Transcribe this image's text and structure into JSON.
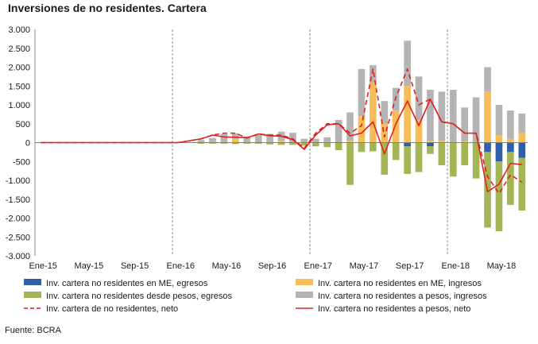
{
  "title": "Inversiones de no residentes. Cartera",
  "source": "Fuente: BCRA",
  "chart_data": {
    "type": "bar",
    "title": "Inversiones de no residentes. Cartera",
    "ylim": [
      -3000,
      3000
    ],
    "yticks": [
      -3000,
      -2500,
      -2000,
      -1500,
      -1000,
      -500,
      0,
      500,
      1000,
      1500,
      2000,
      2500,
      3000
    ],
    "ytick_labels": [
      "-3.000",
      "-2.500",
      "-2.000",
      "-1.500",
      "-1.000",
      "-500",
      "0",
      "500",
      "1.000",
      "1.500",
      "2.000",
      "2.500",
      "3.000"
    ],
    "categories": [
      "Ene-15",
      "Feb-15",
      "Mar-15",
      "Abr-15",
      "May-15",
      "Jun-15",
      "Jul-15",
      "Ago-15",
      "Sep-15",
      "Oct-15",
      "Nov-15",
      "Dic-15",
      "Ene-16",
      "Feb-16",
      "Mar-16",
      "Abr-16",
      "May-16",
      "Jun-16",
      "Jul-16",
      "Ago-16",
      "Sep-16",
      "Oct-16",
      "Nov-16",
      "Dic-16",
      "Ene-17",
      "Feb-17",
      "Mar-17",
      "Abr-17",
      "May-17",
      "Jun-17",
      "Jul-17",
      "Ago-17",
      "Sep-17",
      "Oct-17",
      "Nov-17",
      "Dic-17",
      "Ene-18",
      "Feb-18",
      "Mar-18",
      "Abr-18",
      "May-18",
      "Jun-18",
      "Jul-18"
    ],
    "x_tick_labels": [
      {
        "index": 0,
        "label": "Ene-15"
      },
      {
        "index": 4,
        "label": "May-15"
      },
      {
        "index": 8,
        "label": "Sep-15"
      },
      {
        "index": 12,
        "label": "Ene-16"
      },
      {
        "index": 16,
        "label": "May-16"
      },
      {
        "index": 20,
        "label": "Sep-16"
      },
      {
        "index": 24,
        "label": "Ene-17"
      },
      {
        "index": 28,
        "label": "May-17"
      },
      {
        "index": 32,
        "label": "Sep-17"
      },
      {
        "index": 36,
        "label": "Ene-18"
      },
      {
        "index": 40,
        "label": "May-18"
      }
    ],
    "vlines": [
      12,
      24,
      36
    ],
    "bars_start_index": 14,
    "series": [
      {
        "name": "Inv. cartera no residentes en ME, egresos",
        "color": "#2f5fa8",
        "kind": "bar",
        "stack": "neg",
        "values": [
          0,
          0,
          0,
          0,
          0,
          0,
          0,
          0,
          0,
          0,
          0,
          0,
          0,
          0,
          0,
          0,
          0,
          0,
          0,
          0,
          0,
          0,
          0,
          0,
          0,
          0,
          0,
          0,
          0,
          0,
          0,
          0,
          -100,
          0,
          -100,
          0,
          0,
          0,
          0,
          -250,
          -500,
          -250,
          -400
        ]
      },
      {
        "name": "Inv. cartera no residentes desde pesos, egresos",
        "color": "#a4b556",
        "kind": "bar",
        "stack": "neg",
        "values": [
          0,
          0,
          0,
          0,
          0,
          0,
          0,
          0,
          0,
          0,
          0,
          0,
          0,
          0,
          -30,
          -30,
          -30,
          -40,
          -30,
          -30,
          -50,
          -60,
          -60,
          -80,
          -100,
          -120,
          -200,
          -1120,
          -250,
          -230,
          -850,
          -460,
          -730,
          -780,
          -200,
          -600,
          -900,
          -600,
          -950,
          -2000,
          -1850,
          -1400,
          -1400
        ]
      },
      {
        "name": "Inv. cartera no residentes en ME, ingresos",
        "color": "#f7bd5b",
        "kind": "bar",
        "stack": "pos",
        "values": [
          0,
          0,
          0,
          0,
          0,
          0,
          0,
          0,
          0,
          0,
          0,
          0,
          0,
          0,
          0,
          0,
          0,
          100,
          0,
          0,
          0,
          50,
          0,
          0,
          0,
          0,
          0,
          50,
          700,
          1600,
          500,
          850,
          1500,
          600,
          50,
          50,
          0,
          30,
          0,
          1350,
          200,
          100,
          250
        ]
      },
      {
        "name": "Inv. cartera no residentes a pesos, ingresos",
        "color": "#b4b4b4",
        "kind": "bar",
        "stack": "pos",
        "values": [
          0,
          0,
          0,
          0,
          0,
          0,
          0,
          0,
          0,
          0,
          0,
          0,
          0,
          0,
          70,
          120,
          230,
          150,
          160,
          200,
          230,
          240,
          260,
          100,
          100,
          140,
          600,
          750,
          1250,
          450,
          600,
          600,
          1200,
          1150,
          1350,
          1300,
          1400,
          900,
          1200,
          650,
          800,
          750,
          520
        ]
      },
      {
        "name": "Inv. cartera de no residentes, neto",
        "color": "#e02020",
        "kind": "line",
        "dash": "6,4",
        "values": [
          0,
          0,
          0,
          0,
          0,
          0,
          0,
          0,
          0,
          0,
          0,
          0,
          0,
          50,
          100,
          200,
          250,
          250,
          120,
          230,
          200,
          200,
          100,
          -150,
          250,
          500,
          500,
          250,
          450,
          1950,
          150,
          1200,
          1950,
          1000,
          1150,
          550,
          500,
          250,
          250,
          -900,
          -1350,
          -850,
          -1050
        ]
      },
      {
        "name": "Inv. cartera no residentes a pesos, neto",
        "color": "#e02020",
        "kind": "line",
        "dash": "",
        "values": [
          0,
          0,
          0,
          0,
          0,
          0,
          0,
          0,
          0,
          0,
          0,
          0,
          0,
          50,
          100,
          200,
          150,
          140,
          130,
          230,
          180,
          170,
          80,
          -180,
          200,
          470,
          500,
          180,
          250,
          550,
          -300,
          500,
          1100,
          450,
          1150,
          550,
          500,
          250,
          250,
          -1300,
          -1100,
          -550,
          -580
        ]
      }
    ],
    "legend_rows": [
      [
        0,
        2
      ],
      [
        1,
        3
      ],
      [
        4,
        5
      ]
    ]
  }
}
